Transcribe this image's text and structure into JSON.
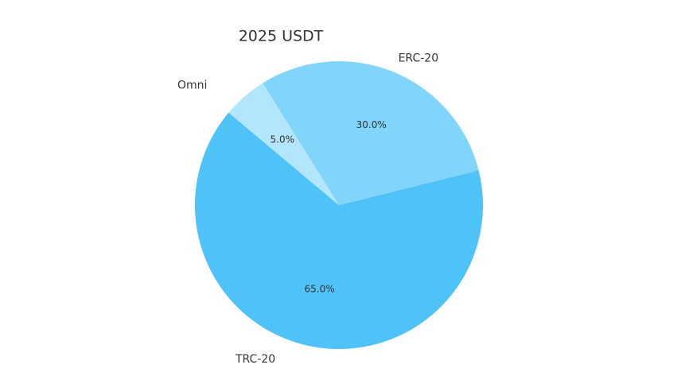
{
  "chart_data": {
    "type": "pie",
    "title": "2025   USDT",
    "categories": [
      "TRC-20",
      "ERC-20",
      "Omni"
    ],
    "values": [
      65,
      30,
      5
    ],
    "value_labels": [
      "65.0%",
      "30.0%",
      "5.0%"
    ],
    "colors": [
      "#4fc3f7",
      "#81d4fa",
      "#b3e5fc"
    ],
    "start_angle": 140,
    "counterclock": true
  }
}
